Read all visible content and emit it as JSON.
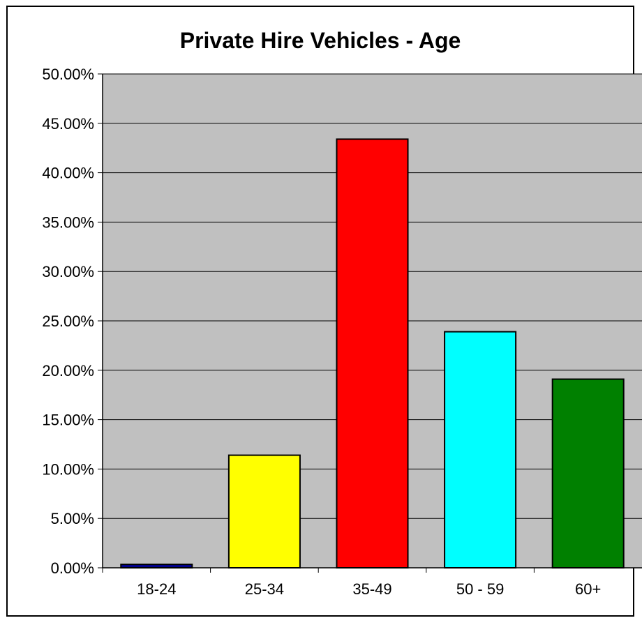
{
  "chart_data": {
    "type": "bar",
    "title": "Private Hire Vehicles - Age",
    "categories": [
      "18-24",
      "25-34",
      "35-49",
      "50 - 59",
      "60+"
    ],
    "values": [
      0.35,
      11.4,
      43.4,
      23.9,
      19.1
    ],
    "ylim": [
      0,
      50
    ],
    "yticks": [
      "0.00%",
      "5.00%",
      "10.00%",
      "15.00%",
      "20.00%",
      "25.00%",
      "30.00%",
      "35.00%",
      "40.00%",
      "45.00%",
      "50.00%"
    ],
    "xlabel": "",
    "ylabel": "",
    "grid": true,
    "legend": "none",
    "colors": [
      "#00008b",
      "#ffff00",
      "#ff0000",
      "#00ffff",
      "#008000"
    ],
    "plot_background": "#c0c0c0"
  }
}
